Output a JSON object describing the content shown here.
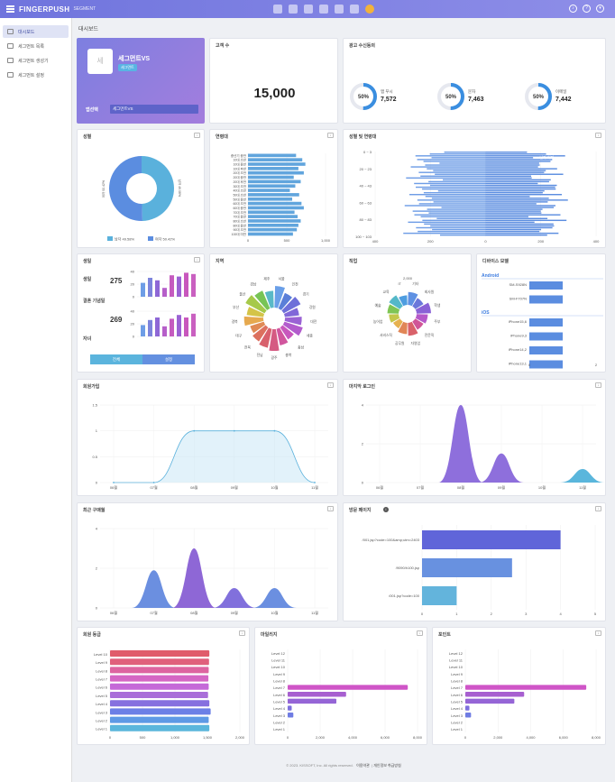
{
  "header": {
    "brand": "FINGERPUSH",
    "brand_sub": "SEGMENT"
  },
  "icons": [
    "home-icon",
    "users-icon",
    "chart-icon",
    "monitor-icon",
    "chat-icon",
    "mail-icon",
    "avatar-icon",
    "bell-icon",
    "help-icon",
    "user-menu-icon",
    "hamburger-icon",
    "download-icon"
  ],
  "sidebar": {
    "items": [
      {
        "label": "대시보드",
        "active": true
      },
      {
        "label": "세그먼트 목록"
      },
      {
        "label": "세그먼트 생성기"
      },
      {
        "label": "세그먼트 설정"
      }
    ]
  },
  "breadcrumb": "대시보드",
  "segment": {
    "name": "세그먼트VS",
    "badge": "세그먼트",
    "avatar_char": "세",
    "select_label": "앱선택",
    "select_value": "세그먼트VS"
  },
  "customers": {
    "title": "고객 수",
    "value": "15,000"
  },
  "receipt": {
    "title": "광고 수신동의",
    "items": [
      {
        "label": "앱 푸시",
        "value": "7,572",
        "pct": "50%",
        "color": "#3a8ee0"
      },
      {
        "label": "문자",
        "value": "7,463",
        "pct": "50%",
        "color": "#3a8ee0"
      },
      {
        "label": "이메일",
        "value": "7,442",
        "pct": "50%",
        "color": "#3a8ee0"
      }
    ]
  },
  "gender": {
    "title": "성별",
    "legend": [
      {
        "label": "남자 49.58%",
        "color": "#5ab1dc"
      },
      {
        "label": "여자 50.42%",
        "color": "#5b8de0"
      }
    ],
    "slice_labels": [
      "남자 49.58%",
      "여자 50.42%"
    ],
    "shares": [
      49.58,
      50.42
    ]
  },
  "age": {
    "title": "연령대",
    "ticks": [
      "0",
      "500",
      "1,000"
    ],
    "categories": [
      "중년기 중반",
      "10대 초반",
      "10대 중반",
      "10대 후반",
      "20대 초반",
      "20대 중반",
      "20대 후반",
      "30대 초반",
      "40대 초반",
      "50대 초반",
      "50대 중반",
      "60대 초반",
      "60대 중반",
      "70대 초반",
      "70대 중반",
      "80대 초반",
      "80대 중반",
      "90대 초반",
      "100대 미만"
    ],
    "values": [
      620,
      700,
      740,
      650,
      720,
      590,
      680,
      610,
      540,
      660,
      570,
      690,
      720,
      600,
      640,
      680,
      650,
      630,
      580
    ]
  },
  "gender_age": {
    "title": "성별 및 연령대",
    "y_ticks": [
      "0 ~ 3",
      "20 ~ 23",
      "40 ~ 43",
      "60 ~ 63",
      "80 ~ 83",
      "100 ~ 103"
    ],
    "x_ticks": [
      "400",
      "200",
      "0",
      "200",
      "400"
    ],
    "legend": "남자 여자"
  },
  "life": {
    "title": "생일",
    "rows": [
      {
        "label": "생일",
        "value": "275"
      },
      {
        "label": "결혼 기념일",
        "value": "269"
      },
      {
        "label": "자녀",
        "value": ""
      }
    ],
    "axis_ticks": [
      "40",
      "20",
      "0"
    ],
    "toggle": [
      "전체",
      "설정"
    ],
    "bars": [
      [
        22,
        30,
        26,
        14,
        34,
        32,
        38,
        36
      ],
      [
        18,
        26,
        30,
        16,
        28,
        34,
        30,
        36
      ]
    ]
  },
  "region": {
    "title": "지역",
    "labels": [
      "서울",
      "인천",
      "경기",
      "강원",
      "대전",
      "세종",
      "충남",
      "충북",
      "광주",
      "전남",
      "전북",
      "대구",
      "경북",
      "부산",
      "울산",
      "경남",
      "제주"
    ],
    "colors": [
      "#6a9fe8",
      "#5a7fd8",
      "#6e6fd9",
      "#8167d8",
      "#9a62d4",
      "#b25ccd",
      "#c857bd",
      "#d1569e",
      "#d55a82",
      "#d8606c",
      "#dc705e",
      "#e08a55",
      "#e6a94f",
      "#d4c448",
      "#a6c94a",
      "#77c455",
      "#59b9c7"
    ],
    "values": [
      9,
      7,
      8,
      6,
      7,
      8,
      6,
      7,
      9,
      8,
      7,
      6,
      8,
      7,
      9,
      8,
      7
    ]
  },
  "job": {
    "title": "직업",
    "labels": [
      "기타",
      "회사원",
      "학생",
      "주부",
      "전문직",
      "자영업",
      "공무원",
      "서비스직",
      "농어업",
      "예술",
      "교육",
      "IT"
    ],
    "tick": "2,000",
    "colors": [
      "#5f91e3",
      "#6b77da",
      "#8a62d6",
      "#b559c8",
      "#d05597",
      "#d9626a",
      "#e18656",
      "#e6b14f",
      "#c3c74a",
      "#7fc554",
      "#54b8c8",
      "#4e9de0"
    ],
    "values": [
      8,
      6,
      9,
      7,
      6,
      8,
      7,
      5,
      6,
      7,
      8,
      6
    ]
  },
  "device": {
    "title": "디바이스 모델",
    "groups": [
      {
        "name": "Android",
        "items": [
          "SM-S928N",
          "SM-F707N"
        ]
      },
      {
        "name": "iOS",
        "items": [
          "iPhone15,6",
          "iPhone9,3",
          "iPhone14,2",
          "iPhone13,1"
        ]
      }
    ],
    "ticks": [
      "0",
      "2"
    ],
    "values": [
      1,
      1,
      1,
      1,
      1,
      1
    ]
  },
  "member_join": {
    "title": "회원가입",
    "y_ticks": [
      "1.5",
      "1",
      "0.5",
      "0"
    ],
    "x_ticks": [
      "06월",
      "07월",
      "08월",
      "09월",
      "10월",
      "11월"
    ],
    "values": [
      0,
      0,
      1,
      1,
      1,
      0
    ]
  },
  "recent_login": {
    "title": "마지막 로그인",
    "y_ticks": [
      "4",
      "2",
      "0"
    ],
    "x_ticks": [
      "06월",
      "07월",
      "08월",
      "09월",
      "10월",
      "11월"
    ],
    "values": [
      0,
      0,
      4,
      1.5,
      0,
      0.7
    ]
  },
  "recent_purchase": {
    "title": "최근 구매월",
    "y_ticks": [
      "4",
      "2",
      "0"
    ],
    "x_ticks": [
      "06월",
      "07월",
      "08월",
      "09월",
      "10월",
      "11월"
    ],
    "values": [
      0,
      1.9,
      3,
      1,
      1,
      0
    ]
  },
  "visited_pages": {
    "title": "방문 페이지",
    "info": "i",
    "categories": [
      "/001.jsp?code=100&amp;utm=2403",
      "/9090/h100.jsp",
      "/001.jsp?code=100"
    ],
    "values": [
      4,
      2.6,
      1
    ],
    "ticks": [
      "0",
      "1",
      "2",
      "3",
      "4",
      "5"
    ],
    "colors": [
      "#6065d9",
      "#6891e0",
      "#63b4dc"
    ]
  },
  "member_grade": {
    "title": "회원 등급",
    "ticks": [
      "0",
      "500",
      "1,000",
      "1,500",
      "2,000"
    ],
    "categories": [
      "Level 10",
      "Level 9",
      "Level 8",
      "Level 7",
      "Level 6",
      "Level 5",
      "Level 4",
      "Level 3",
      "Level 2",
      "Level 1"
    ],
    "values": [
      1530,
      1525,
      1520,
      1515,
      1520,
      1510,
      1530,
      1550,
      1520,
      1530
    ],
    "colors": [
      "#e05c6b",
      "#e0607c",
      "#dd64a0",
      "#d566c4",
      "#c569d8",
      "#a96ed9",
      "#8670df",
      "#6c7fe6",
      "#5e99e5",
      "#5ab6dc"
    ]
  },
  "app_points": {
    "title": "마일리지",
    "ticks": [
      "0",
      "2,000",
      "4,000",
      "6,000",
      "8,000"
    ],
    "categories": [
      "Level 12",
      "Level 11",
      "Level 10",
      "Level 9",
      "Level 8",
      "Level 7",
      "Level 6",
      "Level 5",
      "Level 4",
      "Level 3",
      "Level 2",
      "Level 1"
    ],
    "values": [
      0,
      0,
      0,
      0,
      0,
      7400,
      3600,
      3000,
      250,
      350,
      0,
      0
    ]
  },
  "coupons": {
    "title": "포인트",
    "ticks": [
      "0",
      "2,000",
      "4,000",
      "6,000",
      "8,000"
    ],
    "categories": [
      "Level 12",
      "Level 11",
      "Level 10",
      "Level 9",
      "Level 8",
      "Level 7",
      "Level 6",
      "Level 5",
      "Level 4",
      "Level 3",
      "Level 2",
      "Level 1"
    ],
    "values": [
      0,
      0,
      0,
      0,
      0,
      7400,
      3600,
      3000,
      250,
      350,
      0,
      0
    ]
  },
  "footer": {
    "copyright": "© 2023. KISSOFT, Inc. All rights reserved.",
    "terms": "이용약관",
    "privacy": "개인정보 취급방침"
  }
}
